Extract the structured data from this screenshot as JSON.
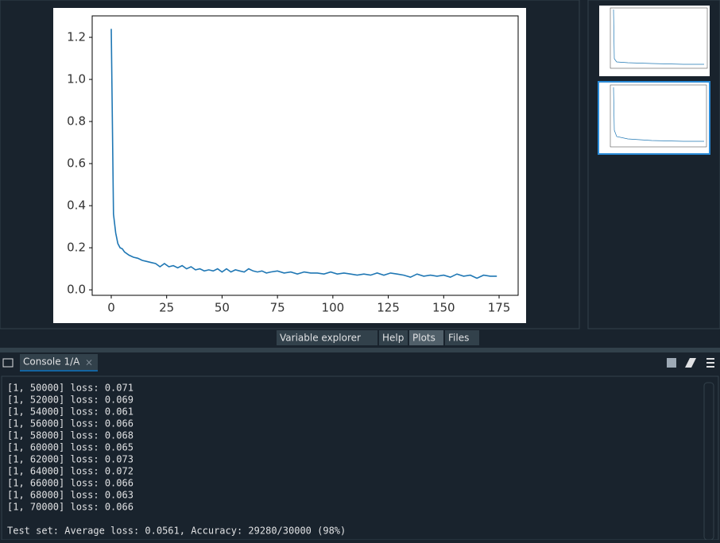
{
  "chart_data": {
    "type": "line",
    "color": "#1f77b4",
    "x": [
      0,
      1,
      2,
      3,
      4,
      5,
      6,
      8,
      10,
      12,
      14,
      16,
      18,
      20,
      22,
      24,
      26,
      28,
      30,
      32,
      34,
      36,
      38,
      40,
      42,
      44,
      46,
      48,
      50,
      52,
      54,
      56,
      58,
      60,
      62,
      64,
      66,
      68,
      70,
      72,
      75,
      78,
      81,
      84,
      87,
      90,
      93,
      96,
      99,
      102,
      105,
      108,
      111,
      114,
      117,
      120,
      123,
      126,
      129,
      132,
      135,
      138,
      141,
      144,
      147,
      150,
      153,
      156,
      159,
      162,
      165,
      168,
      171,
      174
    ],
    "values": [
      1.24,
      0.36,
      0.27,
      0.22,
      0.2,
      0.195,
      0.18,
      0.165,
      0.155,
      0.15,
      0.14,
      0.135,
      0.13,
      0.125,
      0.11,
      0.125,
      0.11,
      0.115,
      0.105,
      0.115,
      0.1,
      0.11,
      0.095,
      0.1,
      0.09,
      0.095,
      0.09,
      0.1,
      0.085,
      0.1,
      0.085,
      0.095,
      0.09,
      0.085,
      0.1,
      0.09,
      0.085,
      0.09,
      0.08,
      0.085,
      0.09,
      0.08,
      0.085,
      0.075,
      0.085,
      0.08,
      0.08,
      0.075,
      0.085,
      0.075,
      0.08,
      0.075,
      0.07,
      0.075,
      0.07,
      0.08,
      0.07,
      0.08,
      0.075,
      0.07,
      0.06,
      0.075,
      0.065,
      0.07,
      0.065,
      0.07,
      0.06,
      0.075,
      0.065,
      0.07,
      0.055,
      0.07,
      0.065,
      0.065
    ],
    "xlim": [
      -8.6,
      183.6
    ],
    "xticks": [
      0,
      25,
      50,
      75,
      100,
      125,
      150,
      175
    ],
    "ylim": [
      -0.026,
      1.302
    ],
    "yticks": [
      {
        "value": 0,
        "label": "0.0"
      },
      {
        "value": 0.2,
        "label": "0.2"
      },
      {
        "value": 0.4,
        "label": "0.4"
      },
      {
        "value": 0.6,
        "label": "0.6"
      },
      {
        "value": 0.8,
        "label": "0.8"
      },
      {
        "value": 1,
        "label": "1.0"
      },
      {
        "value": 1.2,
        "label": "1.2"
      }
    ]
  },
  "tabs": [
    "Variable explorer",
    "Help",
    "Plots",
    "Files"
  ],
  "console": {
    "tab": "Console 1/A",
    "lines": [
      "[1, 50000] loss: 0.071",
      "[1, 52000] loss: 0.069",
      "[1, 54000] loss: 0.061",
      "[1, 56000] loss: 0.066",
      "[1, 58000] loss: 0.068",
      "[1, 60000] loss: 0.065",
      "[1, 62000] loss: 0.073",
      "[1, 64000] loss: 0.072",
      "[1, 66000] loss: 0.066",
      "[1, 68000] loss: 0.063",
      "[1, 70000] loss: 0.066"
    ],
    "result": "Test set: Average loss: 0.0561, Accuracy: 29280/30000 (98%)"
  }
}
